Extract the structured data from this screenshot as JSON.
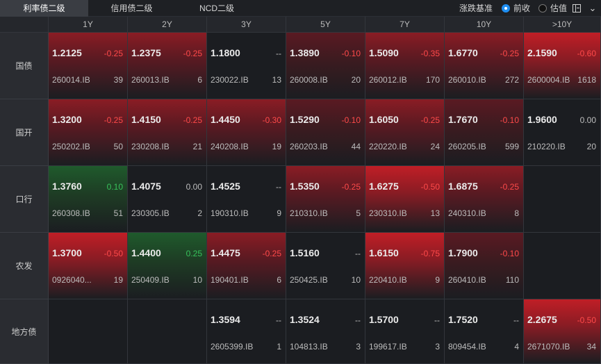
{
  "tabs": [
    "利率债二级",
    "信用债二级",
    "NCD二级"
  ],
  "active_tab": 0,
  "basis": {
    "label": "涨跌基准",
    "options": [
      "前收",
      "估值"
    ],
    "selected": "前收"
  },
  "colors": {
    "up": "#ff4a4a",
    "down": "#37c25b",
    "accent": "#1f8ef1"
  },
  "icons": {
    "panel": "split-panel-icon",
    "collapse": "collapse-icon"
  },
  "tenors": [
    "1Y",
    "2Y",
    "3Y",
    "5Y",
    "7Y",
    "10Y",
    ">10Y"
  ],
  "rows": [
    {
      "label": "国债",
      "cells": [
        {
          "yield": "1.2125",
          "change": "-0.25",
          "code": "260014.IB",
          "count": "39"
        },
        {
          "yield": "1.2375",
          "change": "-0.25",
          "code": "260013.IB",
          "count": "6"
        },
        {
          "yield": "1.1800",
          "change": "--",
          "code": "230022.IB",
          "count": "13"
        },
        {
          "yield": "1.3890",
          "change": "-0.10",
          "code": "260008.IB",
          "count": "20"
        },
        {
          "yield": "1.5090",
          "change": "-0.35",
          "code": "260012.IB",
          "count": "170"
        },
        {
          "yield": "1.6770",
          "change": "-0.25",
          "code": "260010.IB",
          "count": "272"
        },
        {
          "yield": "2.1590",
          "change": "-0.60",
          "code": "2600004.IB",
          "count": "1618"
        }
      ]
    },
    {
      "label": "国开",
      "cells": [
        {
          "yield": "1.3200",
          "change": "-0.25",
          "code": "250202.IB",
          "count": "50"
        },
        {
          "yield": "1.4150",
          "change": "-0.25",
          "code": "230208.IB",
          "count": "21"
        },
        {
          "yield": "1.4450",
          "change": "-0.30",
          "code": "240208.IB",
          "count": "19"
        },
        {
          "yield": "1.5290",
          "change": "-0.10",
          "code": "260203.IB",
          "count": "44"
        },
        {
          "yield": "1.6050",
          "change": "-0.25",
          "code": "220220.IB",
          "count": "24"
        },
        {
          "yield": "1.7670",
          "change": "-0.10",
          "code": "260205.IB",
          "count": "599"
        },
        {
          "yield": "1.9600",
          "change": "0.00",
          "code": "210220.IB",
          "count": "20"
        }
      ]
    },
    {
      "label": "口行",
      "cells": [
        {
          "yield": "1.3760",
          "change": "0.10",
          "code": "260308.IB",
          "count": "51"
        },
        {
          "yield": "1.4075",
          "change": "0.00",
          "code": "230305.IB",
          "count": "2"
        },
        {
          "yield": "1.4525",
          "change": "--",
          "code": "190310.IB",
          "count": "9"
        },
        {
          "yield": "1.5350",
          "change": "-0.25",
          "code": "210310.IB",
          "count": "5"
        },
        {
          "yield": "1.6275",
          "change": "-0.50",
          "code": "230310.IB",
          "count": "13"
        },
        {
          "yield": "1.6875",
          "change": "-0.25",
          "code": "240310.IB",
          "count": "8"
        },
        null
      ]
    },
    {
      "label": "农发",
      "cells": [
        {
          "yield": "1.3700",
          "change": "-0.50",
          "code": "0926040...",
          "count": "19"
        },
        {
          "yield": "1.4400",
          "change": "0.25",
          "code": "250409.IB",
          "count": "10"
        },
        {
          "yield": "1.4475",
          "change": "-0.25",
          "code": "190401.IB",
          "count": "6"
        },
        {
          "yield": "1.5160",
          "change": "--",
          "code": "250425.IB",
          "count": "10"
        },
        {
          "yield": "1.6150",
          "change": "-0.75",
          "code": "220410.IB",
          "count": "9"
        },
        {
          "yield": "1.7900",
          "change": "-0.10",
          "code": "260410.IB",
          "count": "110"
        },
        null
      ]
    },
    {
      "label": "地方债",
      "cells": [
        null,
        null,
        {
          "yield": "1.3594",
          "change": "--",
          "code": "2605399.IB",
          "count": "1"
        },
        {
          "yield": "1.3524",
          "change": "--",
          "code": "104813.IB",
          "count": "3"
        },
        {
          "yield": "1.5700",
          "change": "--",
          "code": "199617.IB",
          "count": "3"
        },
        {
          "yield": "1.7520",
          "change": "--",
          "code": "809454.IB",
          "count": "4"
        },
        {
          "yield": "2.2675",
          "change": "-0.50",
          "code": "2671070.IB",
          "count": "34"
        }
      ]
    }
  ]
}
